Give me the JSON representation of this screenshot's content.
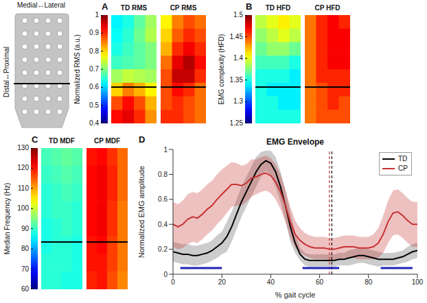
{
  "schematic": {
    "top_label": "Medial↔Lateral",
    "side_label": "Distal↔Proximal"
  },
  "chart_data": [
    {
      "type": "heatmap",
      "panel": "A",
      "colorbar_label": "Normalized RMS (a.u.)",
      "colorbar_lim": [
        0.4,
        1
      ],
      "colorbar_ticks": [
        0.4,
        0.5,
        0.6,
        0.7,
        0.8,
        0.9,
        1
      ],
      "maps": [
        {
          "title": "TD RMS",
          "cells": [
            [
              0.62,
              0.64,
              0.68,
              0.72
            ],
            [
              0.63,
              0.65,
              0.69,
              0.73
            ],
            [
              0.64,
              0.66,
              0.68,
              0.7
            ],
            [
              0.66,
              0.67,
              0.68,
              0.7
            ],
            [
              0.72,
              0.74,
              0.73,
              0.72
            ],
            [
              0.8,
              0.85,
              0.82,
              0.78
            ],
            [
              0.88,
              0.92,
              0.88,
              0.82
            ],
            [
              0.92,
              0.94,
              0.9,
              0.84
            ]
          ]
        },
        {
          "title": "CP RMS",
          "cells": [
            [
              0.78,
              0.85,
              0.88,
              0.86
            ],
            [
              0.8,
              0.87,
              0.9,
              0.88
            ],
            [
              0.82,
              0.9,
              0.93,
              0.9
            ],
            [
              0.86,
              0.94,
              0.97,
              0.92
            ],
            [
              0.88,
              0.96,
              0.96,
              0.9
            ],
            [
              0.88,
              0.92,
              0.9,
              0.86
            ],
            [
              0.88,
              0.9,
              0.88,
              0.86
            ],
            [
              0.9,
              0.9,
              0.88,
              0.86
            ]
          ]
        }
      ]
    },
    {
      "type": "heatmap",
      "panel": "B",
      "colorbar_label": "EMG complexity (HFD)",
      "colorbar_lim": [
        1.25,
        1.5
      ],
      "colorbar_ticks": [
        1.25,
        1.3,
        1.35,
        1.4,
        1.45,
        1.5
      ],
      "maps": [
        {
          "title": "TD HFD",
          "cells": [
            [
              1.39,
              1.4,
              1.41,
              1.4
            ],
            [
              1.38,
              1.39,
              1.4,
              1.39
            ],
            [
              1.37,
              1.38,
              1.38,
              1.37
            ],
            [
              1.36,
              1.36,
              1.36,
              1.35
            ],
            [
              1.35,
              1.35,
              1.35,
              1.34
            ],
            [
              1.35,
              1.34,
              1.34,
              1.34
            ],
            [
              1.35,
              1.35,
              1.34,
              1.34
            ],
            [
              1.35,
              1.35,
              1.35,
              1.35
            ]
          ]
        },
        {
          "title": "CP HFD",
          "cells": [
            [
              1.44,
              1.46,
              1.47,
              1.46
            ],
            [
              1.44,
              1.46,
              1.47,
              1.47
            ],
            [
              1.44,
              1.46,
              1.47,
              1.47
            ],
            [
              1.44,
              1.46,
              1.47,
              1.47
            ],
            [
              1.44,
              1.46,
              1.46,
              1.46
            ],
            [
              1.44,
              1.45,
              1.46,
              1.46
            ],
            [
              1.44,
              1.45,
              1.46,
              1.45
            ],
            [
              1.44,
              1.45,
              1.45,
              1.45
            ]
          ]
        }
      ]
    },
    {
      "type": "heatmap",
      "panel": "C",
      "colorbar_label": "Median Frequency (Hz)",
      "colorbar_lim": [
        60,
        130
      ],
      "colorbar_ticks": [
        60,
        70,
        80,
        90,
        100,
        110,
        120,
        130
      ],
      "maps": [
        {
          "title": "TD MDF",
          "cells": [
            [
              91,
              92,
              93,
              92
            ],
            [
              90,
              91,
              92,
              91
            ],
            [
              89,
              90,
              91,
              90
            ],
            [
              89,
              90,
              90,
              89
            ],
            [
              88,
              89,
              90,
              89
            ],
            [
              88,
              89,
              89,
              88
            ],
            [
              89,
              89,
              89,
              88
            ],
            [
              89,
              89,
              88,
              88
            ]
          ]
        },
        {
          "title": "CP MDF",
          "cells": [
            [
              120,
              121,
              118,
              114
            ],
            [
              121,
              122,
              119,
              114
            ],
            [
              121,
              122,
              119,
              114
            ],
            [
              121,
              122,
              118,
              113
            ],
            [
              121,
              122,
              118,
              113
            ],
            [
              120,
              121,
              117,
              113
            ],
            [
              120,
              120,
              117,
              113
            ],
            [
              119,
              120,
              116,
              112
            ]
          ]
        }
      ]
    },
    {
      "type": "line",
      "panel": "D",
      "title": "EMG Envelope",
      "x_label": "% gait cycle",
      "y_label": "Normalized EMG amplitude",
      "x": [
        0,
        2,
        4,
        6,
        8,
        10,
        12,
        14,
        16,
        18,
        20,
        22,
        24,
        26,
        28,
        30,
        32,
        34,
        36,
        38,
        40,
        42,
        44,
        46,
        48,
        50,
        52,
        54,
        56,
        58,
        60,
        62,
        64,
        66,
        68,
        70,
        72,
        74,
        76,
        78,
        80,
        82,
        84,
        86,
        88,
        90,
        92,
        94,
        96,
        98,
        100
      ],
      "xlim": [
        0,
        100
      ],
      "xticks": [
        0,
        20,
        40,
        60,
        80,
        100
      ],
      "ylim": [
        0,
        1
      ],
      "yticks": [
        0,
        0.2,
        0.4,
        0.6,
        0.8,
        1
      ],
      "legend": "upper right",
      "series": [
        {
          "name": "TD",
          "color": "#000000",
          "line_style": "solid",
          "stance_end": 65,
          "values": [
            0.18,
            0.17,
            0.16,
            0.16,
            0.15,
            0.15,
            0.16,
            0.17,
            0.19,
            0.22,
            0.25,
            0.3,
            0.38,
            0.48,
            0.58,
            0.66,
            0.74,
            0.82,
            0.88,
            0.91,
            0.89,
            0.82,
            0.7,
            0.55,
            0.38,
            0.25,
            0.16,
            0.12,
            0.11,
            0.11,
            0.11,
            0.11,
            0.11,
            0.11,
            0.12,
            0.12,
            0.13,
            0.14,
            0.15,
            0.15,
            0.14,
            0.13,
            0.12,
            0.12,
            0.12,
            0.12,
            0.13,
            0.14,
            0.16,
            0.18,
            0.19
          ],
          "lower": [
            0.1,
            0.09,
            0.08,
            0.08,
            0.07,
            0.07,
            0.08,
            0.09,
            0.11,
            0.13,
            0.16,
            0.18,
            0.26,
            0.36,
            0.46,
            0.54,
            0.62,
            0.7,
            0.78,
            0.83,
            0.79,
            0.7,
            0.58,
            0.43,
            0.26,
            0.17,
            0.11,
            0.07,
            0.06,
            0.06,
            0.06,
            0.06,
            0.06,
            0.06,
            0.07,
            0.07,
            0.07,
            0.08,
            0.09,
            0.09,
            0.08,
            0.07,
            0.06,
            0.07,
            0.07,
            0.07,
            0.08,
            0.09,
            0.1,
            0.12,
            0.13
          ],
          "upper": [
            0.26,
            0.25,
            0.24,
            0.24,
            0.23,
            0.23,
            0.24,
            0.25,
            0.27,
            0.31,
            0.34,
            0.42,
            0.5,
            0.6,
            0.7,
            0.78,
            0.86,
            0.94,
            0.98,
            0.99,
            0.99,
            0.94,
            0.82,
            0.67,
            0.5,
            0.33,
            0.21,
            0.17,
            0.16,
            0.16,
            0.16,
            0.16,
            0.16,
            0.16,
            0.17,
            0.17,
            0.19,
            0.2,
            0.21,
            0.21,
            0.2,
            0.19,
            0.18,
            0.17,
            0.17,
            0.17,
            0.18,
            0.19,
            0.22,
            0.24,
            0.25
          ]
        },
        {
          "name": "CP",
          "color": "#c83232",
          "line_style": "solid",
          "stance_end": 64,
          "values": [
            0.4,
            0.38,
            0.4,
            0.44,
            0.46,
            0.45,
            0.48,
            0.52,
            0.55,
            0.6,
            0.64,
            0.68,
            0.72,
            0.72,
            0.71,
            0.73,
            0.77,
            0.78,
            0.8,
            0.81,
            0.79,
            0.74,
            0.66,
            0.55,
            0.42,
            0.32,
            0.27,
            0.24,
            0.22,
            0.21,
            0.21,
            0.21,
            0.2,
            0.2,
            0.21,
            0.22,
            0.22,
            0.22,
            0.21,
            0.21,
            0.21,
            0.22,
            0.25,
            0.32,
            0.42,
            0.49,
            0.5,
            0.47,
            0.43,
            0.4,
            0.4
          ],
          "lower": [
            0.22,
            0.2,
            0.21,
            0.24,
            0.26,
            0.25,
            0.28,
            0.32,
            0.35,
            0.4,
            0.44,
            0.49,
            0.54,
            0.55,
            0.55,
            0.58,
            0.62,
            0.64,
            0.66,
            0.67,
            0.65,
            0.6,
            0.52,
            0.42,
            0.3,
            0.21,
            0.17,
            0.15,
            0.13,
            0.12,
            0.12,
            0.12,
            0.11,
            0.11,
            0.12,
            0.13,
            0.13,
            0.13,
            0.12,
            0.12,
            0.12,
            0.12,
            0.13,
            0.17,
            0.25,
            0.31,
            0.32,
            0.29,
            0.25,
            0.22,
            0.22
          ],
          "upper": [
            0.58,
            0.56,
            0.59,
            0.64,
            0.66,
            0.65,
            0.68,
            0.72,
            0.75,
            0.8,
            0.84,
            0.87,
            0.9,
            0.89,
            0.87,
            0.88,
            0.92,
            0.92,
            0.94,
            0.95,
            0.93,
            0.88,
            0.8,
            0.68,
            0.54,
            0.43,
            0.37,
            0.33,
            0.31,
            0.3,
            0.3,
            0.3,
            0.29,
            0.29,
            0.3,
            0.31,
            0.31,
            0.31,
            0.3,
            0.3,
            0.3,
            0.32,
            0.37,
            0.47,
            0.59,
            0.67,
            0.68,
            0.65,
            0.61,
            0.58,
            0.58
          ]
        }
      ],
      "significance": {
        "y": 0.05,
        "color": "#2222bb",
        "intervals": [
          [
            3,
            20
          ],
          [
            53,
            68
          ],
          [
            85,
            98
          ]
        ]
      }
    }
  ]
}
